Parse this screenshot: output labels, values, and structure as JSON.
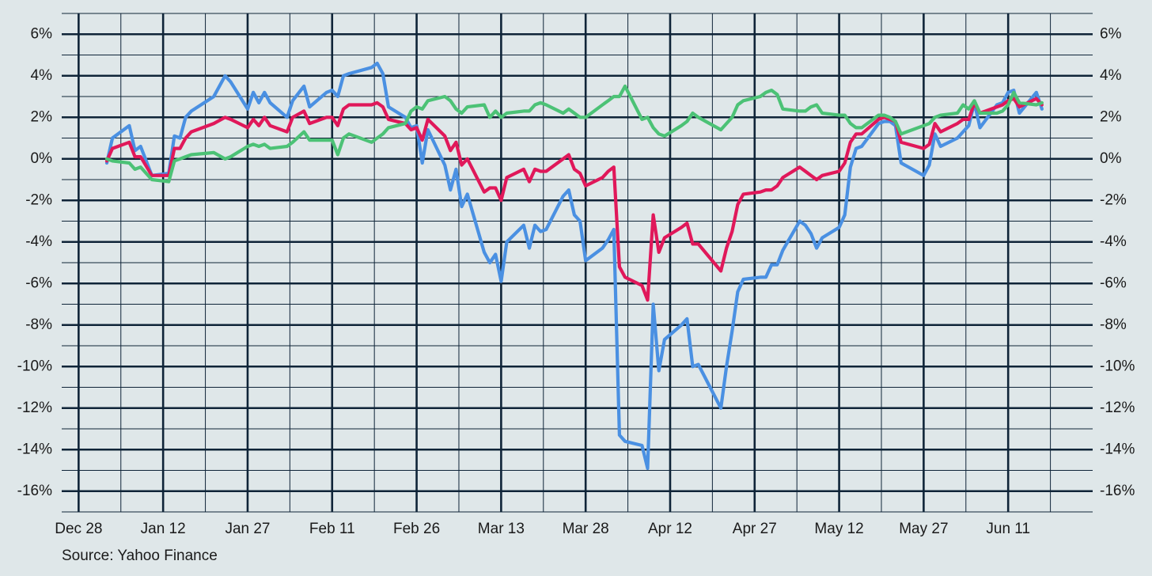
{
  "chart_data": {
    "type": "line",
    "caption": "Source: Yahoo Finance",
    "x": [
      "Jan 2",
      "Jan 3",
      "Jan 6",
      "Jan 7",
      "Jan 8",
      "Jan 10",
      "Jan 13",
      "Jan 14",
      "Jan 15",
      "Jan 16",
      "Jan 17",
      "Jan 21",
      "Jan 23",
      "Jan 24",
      "Jan 27",
      "Jan 28",
      "Jan 29",
      "Jan 30",
      "Jan 31",
      "Feb 3",
      "Feb 4",
      "Feb 6",
      "Feb 7",
      "Feb 10",
      "Feb 11",
      "Feb 12",
      "Feb 13",
      "Feb 14",
      "Feb 18",
      "Feb 19",
      "Feb 20",
      "Feb 21",
      "Feb 24",
      "Feb 25",
      "Feb 26",
      "Feb 27",
      "Feb 28",
      "Mar 3",
      "Mar 4",
      "Mar 5",
      "Mar 6",
      "Mar 7",
      "Mar 10",
      "Mar 11",
      "Mar 12",
      "Mar 13",
      "Mar 14",
      "Mar 17",
      "Mar 18",
      "Mar 19",
      "Mar 20",
      "Mar 21",
      "Mar 24",
      "Mar 25",
      "Mar 26",
      "Mar 27",
      "Mar 28",
      "Mar 31",
      "Apr 1",
      "Apr 2",
      "Apr 3",
      "Apr 4",
      "Apr 7",
      "Apr 8",
      "Apr 9",
      "Apr 10",
      "Apr 11",
      "Apr 14",
      "Apr 15",
      "Apr 16",
      "Apr 17",
      "Apr 21",
      "Apr 22",
      "Apr 23",
      "Apr 24",
      "Apr 25",
      "Apr 28",
      "Apr 29",
      "Apr 30",
      "May 1",
      "May 2",
      "May 5",
      "May 6",
      "May 7",
      "May 8",
      "May 9",
      "May 12",
      "May 13",
      "May 14",
      "May 15",
      "May 16",
      "May 19",
      "May 20",
      "May 21",
      "May 22",
      "May 23",
      "May 27",
      "May 28",
      "May 29",
      "May 30",
      "Jun 2",
      "Jun 3",
      "Jun 4",
      "Jun 5",
      "Jun 6",
      "Jun 9",
      "Jun 10",
      "Jun 11",
      "Jun 12",
      "Jun 13",
      "Jun 16",
      "Jun 17"
    ],
    "series": [
      {
        "color": "#4a90e2",
        "values": [
          -0.2,
          1.0,
          1.6,
          0.4,
          0.6,
          -0.8,
          -0.7,
          1.1,
          1.0,
          2.0,
          2.3,
          3.0,
          4.0,
          3.7,
          2.4,
          3.2,
          2.7,
          3.2,
          2.7,
          2.0,
          2.8,
          3.5,
          2.5,
          3.2,
          3.3,
          3.0,
          4.0,
          4.1,
          4.4,
          4.6,
          4.1,
          2.5,
          2.0,
          1.5,
          1.6,
          -0.2,
          1.4,
          -0.3,
          -1.5,
          -0.5,
          -2.3,
          -1.7,
          -4.5,
          -5.0,
          -4.6,
          -5.9,
          -4.0,
          -3.2,
          -4.3,
          -3.2,
          -3.5,
          -3.4,
          -1.8,
          -1.5,
          -2.7,
          -3.0,
          -4.9,
          -4.3,
          -3.9,
          -3.4,
          -13.3,
          -13.6,
          -13.8,
          -14.9,
          -7.0,
          -10.2,
          -8.7,
          -8.0,
          -7.7,
          -10.0,
          -9.9,
          -12.0,
          -10.0,
          -8.3,
          -6.4,
          -5.8,
          -5.7,
          -5.7,
          -5.1,
          -5.1,
          -4.4,
          -3.0,
          -3.2,
          -3.6,
          -4.3,
          -3.8,
          -3.3,
          -2.7,
          -0.4,
          0.5,
          0.6,
          1.7,
          1.8,
          1.8,
          1.6,
          -0.2,
          -0.8,
          -0.3,
          1.2,
          0.6,
          1.0,
          1.3,
          1.6,
          2.7,
          1.5,
          2.6,
          2.7,
          3.2,
          3.3,
          2.2,
          3.2,
          2.4
        ]
      },
      {
        "color": "#e0185a",
        "values": [
          -0.1,
          0.5,
          0.8,
          0.1,
          0.1,
          -0.8,
          -0.8,
          0.5,
          0.5,
          1.0,
          1.3,
          1.7,
          2.0,
          1.9,
          1.5,
          1.9,
          1.6,
          2.0,
          1.6,
          1.3,
          2.0,
          2.3,
          1.7,
          2.0,
          2.0,
          1.6,
          2.4,
          2.6,
          2.6,
          2.7,
          2.5,
          1.9,
          1.7,
          1.4,
          1.5,
          0.9,
          1.9,
          1.1,
          0.4,
          0.8,
          -0.3,
          0.0,
          -1.6,
          -1.4,
          -1.4,
          -2.0,
          -0.9,
          -0.5,
          -1.1,
          -0.5,
          -0.6,
          -0.6,
          0.0,
          0.2,
          -0.5,
          -0.7,
          -1.3,
          -0.9,
          -0.6,
          -0.4,
          -5.2,
          -5.7,
          -6.1,
          -6.8,
          -2.7,
          -4.5,
          -3.8,
          -3.3,
          -3.1,
          -4.1,
          -4.1,
          -5.4,
          -4.3,
          -3.5,
          -2.2,
          -1.7,
          -1.6,
          -1.5,
          -1.5,
          -1.3,
          -0.9,
          -0.4,
          -0.6,
          -0.8,
          -1.0,
          -0.8,
          -0.6,
          -0.2,
          0.8,
          1.2,
          1.2,
          1.9,
          2.0,
          1.9,
          1.8,
          0.8,
          0.5,
          0.7,
          1.7,
          1.3,
          1.7,
          1.9,
          1.9,
          2.7,
          2.2,
          2.5,
          2.6,
          2.8,
          2.9,
          2.5,
          2.9,
          2.6
        ]
      },
      {
        "color": "#4cc276",
        "values": [
          0.0,
          -0.1,
          -0.2,
          -0.5,
          -0.4,
          -1.0,
          -1.1,
          -0.1,
          0.0,
          0.1,
          0.2,
          0.3,
          0.0,
          0.1,
          0.6,
          0.7,
          0.6,
          0.7,
          0.5,
          0.6,
          0.8,
          1.3,
          0.9,
          0.9,
          0.9,
          0.2,
          1.0,
          1.2,
          0.8,
          1.0,
          1.2,
          1.5,
          1.7,
          2.3,
          2.5,
          2.4,
          2.8,
          3.0,
          2.8,
          2.4,
          2.2,
          2.5,
          2.6,
          2.0,
          2.3,
          2.0,
          2.2,
          2.3,
          2.3,
          2.6,
          2.7,
          2.6,
          2.2,
          2.4,
          2.2,
          2.0,
          2.0,
          2.6,
          2.8,
          3.0,
          3.0,
          3.5,
          1.9,
          2.0,
          1.5,
          1.2,
          1.1,
          1.6,
          1.8,
          2.2,
          2.0,
          1.4,
          1.7,
          2.0,
          2.6,
          2.8,
          3.0,
          3.2,
          3.3,
          3.1,
          2.4,
          2.3,
          2.3,
          2.5,
          2.6,
          2.2,
          2.1,
          2.1,
          1.7,
          1.5,
          1.5,
          2.1,
          2.1,
          2.0,
          1.8,
          1.2,
          1.6,
          1.7,
          2.0,
          2.1,
          2.2,
          2.6,
          2.4,
          2.8,
          2.2,
          2.2,
          2.3,
          2.6,
          3.2,
          2.7,
          2.6,
          2.7
        ]
      }
    ],
    "xlim": [
      "Dec 25",
      "Jun 26"
    ],
    "xticks": [
      "Dec 28",
      "Jan 12",
      "Jan 27",
      "Feb 11",
      "Feb 26",
      "Mar 13",
      "Mar 28",
      "Apr 12",
      "Apr 27",
      "May 12",
      "May 27",
      "Jun 11"
    ],
    "ylim": [
      -17,
      7
    ],
    "yticks": [
      {
        "value": -16,
        "label": "-16%"
      },
      {
        "value": -14,
        "label": "-14%"
      },
      {
        "value": -12,
        "label": "-12%"
      },
      {
        "value": -10,
        "label": "-10%"
      },
      {
        "value": -8,
        "label": "-8%"
      },
      {
        "value": -6,
        "label": "-6%"
      },
      {
        "value": -4,
        "label": "-4%"
      },
      {
        "value": -2,
        "label": "-2%"
      },
      {
        "value": 0,
        "label": "0%"
      },
      {
        "value": 2,
        "label": "2%"
      },
      {
        "value": 4,
        "label": "4%"
      },
      {
        "value": 6,
        "label": "6%"
      }
    ],
    "grid": true,
    "minor_grid": true,
    "right_axis_labels": true
  }
}
